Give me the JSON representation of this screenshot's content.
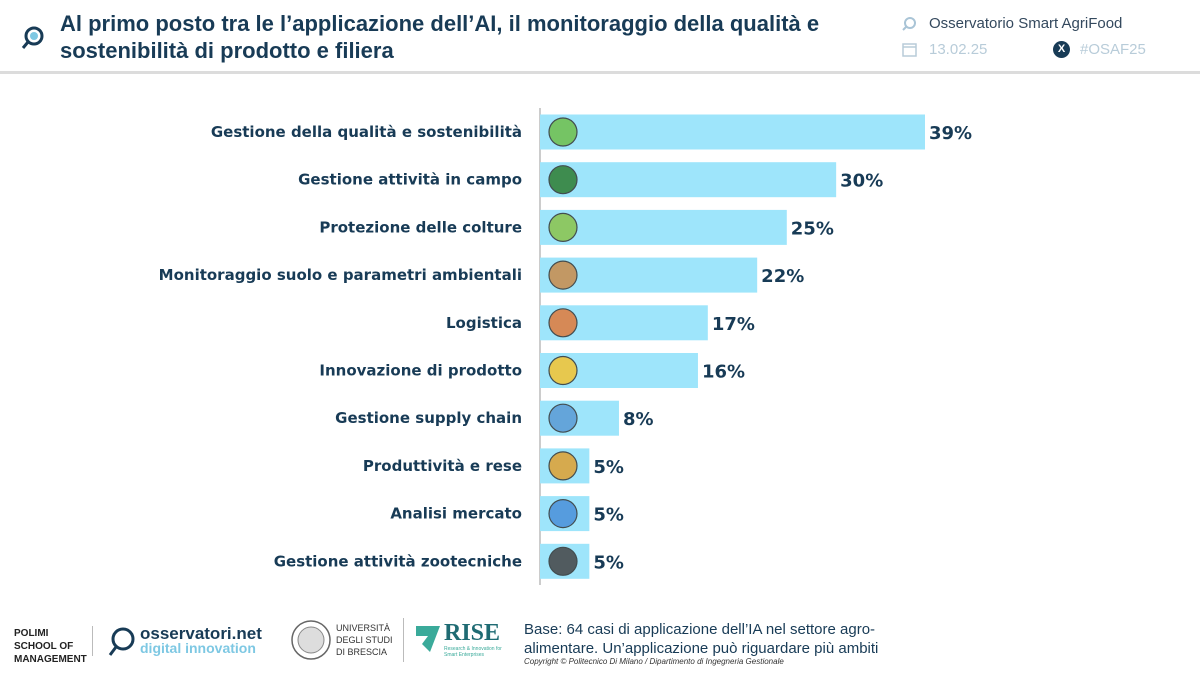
{
  "header": {
    "title": "Al primo posto tra le l’applicazione dell’AI, il monitoraggio della qualità e sostenibilità di prodotto e filiera",
    "observatory": "Osservatorio Smart AgriFood",
    "date": "13.02.25",
    "hashtag": "#OSAF25"
  },
  "chart_data": {
    "type": "bar",
    "orientation": "horizontal",
    "categories": [
      "Gestione della qualità e sostenibilità",
      "Gestione attività in campo",
      "Protezione delle colture",
      "Monitoraggio suolo e parametri ambientali",
      "Logistica",
      "Innovazione di prodotto",
      "Gestione supply chain",
      "Produttività e rese",
      "Analisi mercato",
      "Gestione attività zootecniche"
    ],
    "values": [
      39,
      30,
      25,
      22,
      17,
      16,
      8,
      5,
      5,
      5
    ],
    "labels": [
      "39%",
      "30%",
      "25%",
      "22%",
      "17%",
      "16%",
      "8%",
      "5%",
      "5%",
      "5%"
    ],
    "icons": [
      "globe-plant-icon",
      "tractor-icon",
      "leaf-bug-icon",
      "soil-layers-icon",
      "delivery-truck-icon",
      "lightbulb-gear-icon",
      "network-icon",
      "wheat-icon",
      "bar-chart-icon",
      "cow-icon"
    ],
    "bar_color": "#9ee5fb",
    "xlim": [
      0,
      40
    ]
  },
  "footer": {
    "logos": {
      "polimi": "POLIMI SCHOOL OF MANAGEMENT",
      "osservatori": "osservatori.net",
      "osservatori_sub": "digital innovation",
      "unibs": "UNIVERSITÀ DEGLI STUDI DI BRESCIA",
      "rise": "RISE",
      "rise_sub": "Research & Innovation for Smart Enterprises"
    },
    "note": "Base: 64 casi di applicazione dell’IA nel settore agro-alimentare. Un’applicazione può riguardare più ambiti",
    "copyright": "Copyright © Politecnico Di Milano / Dipartimento di Ingegneria Gestionale"
  }
}
